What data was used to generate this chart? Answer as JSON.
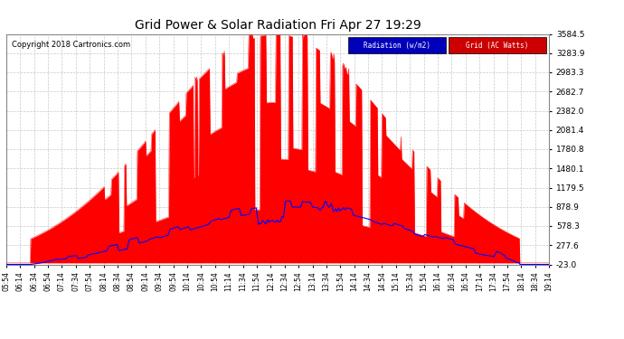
{
  "title": "Grid Power & Solar Radiation Fri Apr 27 19:29",
  "copyright": "Copyright 2018 Cartronics.com",
  "bg_color": "#ffffff",
  "plot_bg_color": "#ffffff",
  "grid_color": "#c8c8c8",
  "grid_style": "--",
  "y_ticks": [
    -23.0,
    277.6,
    578.3,
    878.9,
    1179.5,
    1480.1,
    1780.8,
    2081.4,
    2382.0,
    2682.7,
    2983.3,
    3283.9,
    3584.5
  ],
  "ylim_min": -23.0,
  "ylim_max": 3584.5,
  "legend_labels": [
    "Radiation (w/m2)",
    "Grid (AC Watts)"
  ],
  "legend_colors_bg": [
    "#0000bb",
    "#cc0000"
  ],
  "legend_text_colors": [
    "#ffffff",
    "#ffffff"
  ],
  "radiation_color": "#ff0000",
  "grid_power_color": "#0000ff",
  "radiation_fill_alpha": 1.0,
  "x_tick_labels": [
    "05:54",
    "06:14",
    "06:34",
    "06:54",
    "07:14",
    "07:34",
    "07:54",
    "08:14",
    "08:34",
    "08:54",
    "09:14",
    "09:34",
    "09:54",
    "10:14",
    "10:34",
    "10:54",
    "11:14",
    "11:34",
    "11:54",
    "12:14",
    "12:34",
    "12:54",
    "13:14",
    "13:34",
    "13:54",
    "14:14",
    "14:34",
    "14:54",
    "15:14",
    "15:34",
    "15:54",
    "16:14",
    "16:34",
    "16:54",
    "17:14",
    "17:34",
    "17:54",
    "18:14",
    "18:34",
    "19:14"
  ]
}
